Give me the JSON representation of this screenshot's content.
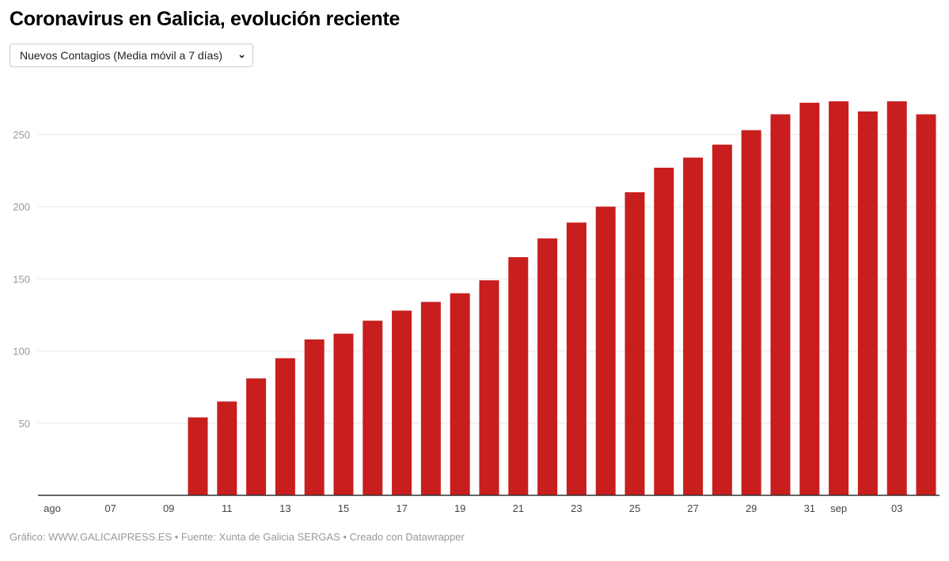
{
  "title": "Coronavirus en Galicia, evolución reciente",
  "selector": {
    "selected": "Nuevos Contagios (Media móvil a 7 días)",
    "icon": "chevron-down-icon"
  },
  "footer": "Gráfico: WWW.GALICAIPRESS.ES • Fuente: Xunta de Galicia SERGAS • Creado con Datawrapper",
  "chart_data": {
    "type": "bar",
    "color": "#c81e1e",
    "categories": [
      "2020-08-05",
      "2020-08-06",
      "2020-08-07",
      "2020-08-08",
      "2020-08-09",
      "2020-08-10",
      "2020-08-11",
      "2020-08-12",
      "2020-08-13",
      "2020-08-14",
      "2020-08-15",
      "2020-08-16",
      "2020-08-17",
      "2020-08-18",
      "2020-08-19",
      "2020-08-20",
      "2020-08-21",
      "2020-08-22",
      "2020-08-23",
      "2020-08-24",
      "2020-08-25",
      "2020-08-26",
      "2020-08-27",
      "2020-08-28",
      "2020-08-29",
      "2020-08-30",
      "2020-08-31",
      "2020-09-01",
      "2020-09-02",
      "2020-09-03",
      "2020-09-04"
    ],
    "values": [
      null,
      null,
      null,
      null,
      null,
      54,
      65,
      81,
      95,
      108,
      112,
      121,
      128,
      134,
      140,
      149,
      165,
      178,
      189,
      200,
      210,
      227,
      234,
      243,
      253,
      264,
      272,
      273,
      266,
      273,
      264
    ],
    "x_tick_labels": [
      "ago",
      "07",
      "09",
      "11",
      "13",
      "15",
      "17",
      "19",
      "21",
      "23",
      "25",
      "27",
      "29",
      "31",
      "sep",
      "03"
    ],
    "x_tick_index": [
      0,
      2,
      4,
      6,
      8,
      10,
      12,
      14,
      16,
      18,
      20,
      22,
      24,
      26,
      27,
      29
    ],
    "y_ticks": [
      50,
      100,
      150,
      200,
      250
    ],
    "ylim": [
      0,
      280
    ],
    "grid": true,
    "xlabel": "",
    "ylabel": ""
  }
}
